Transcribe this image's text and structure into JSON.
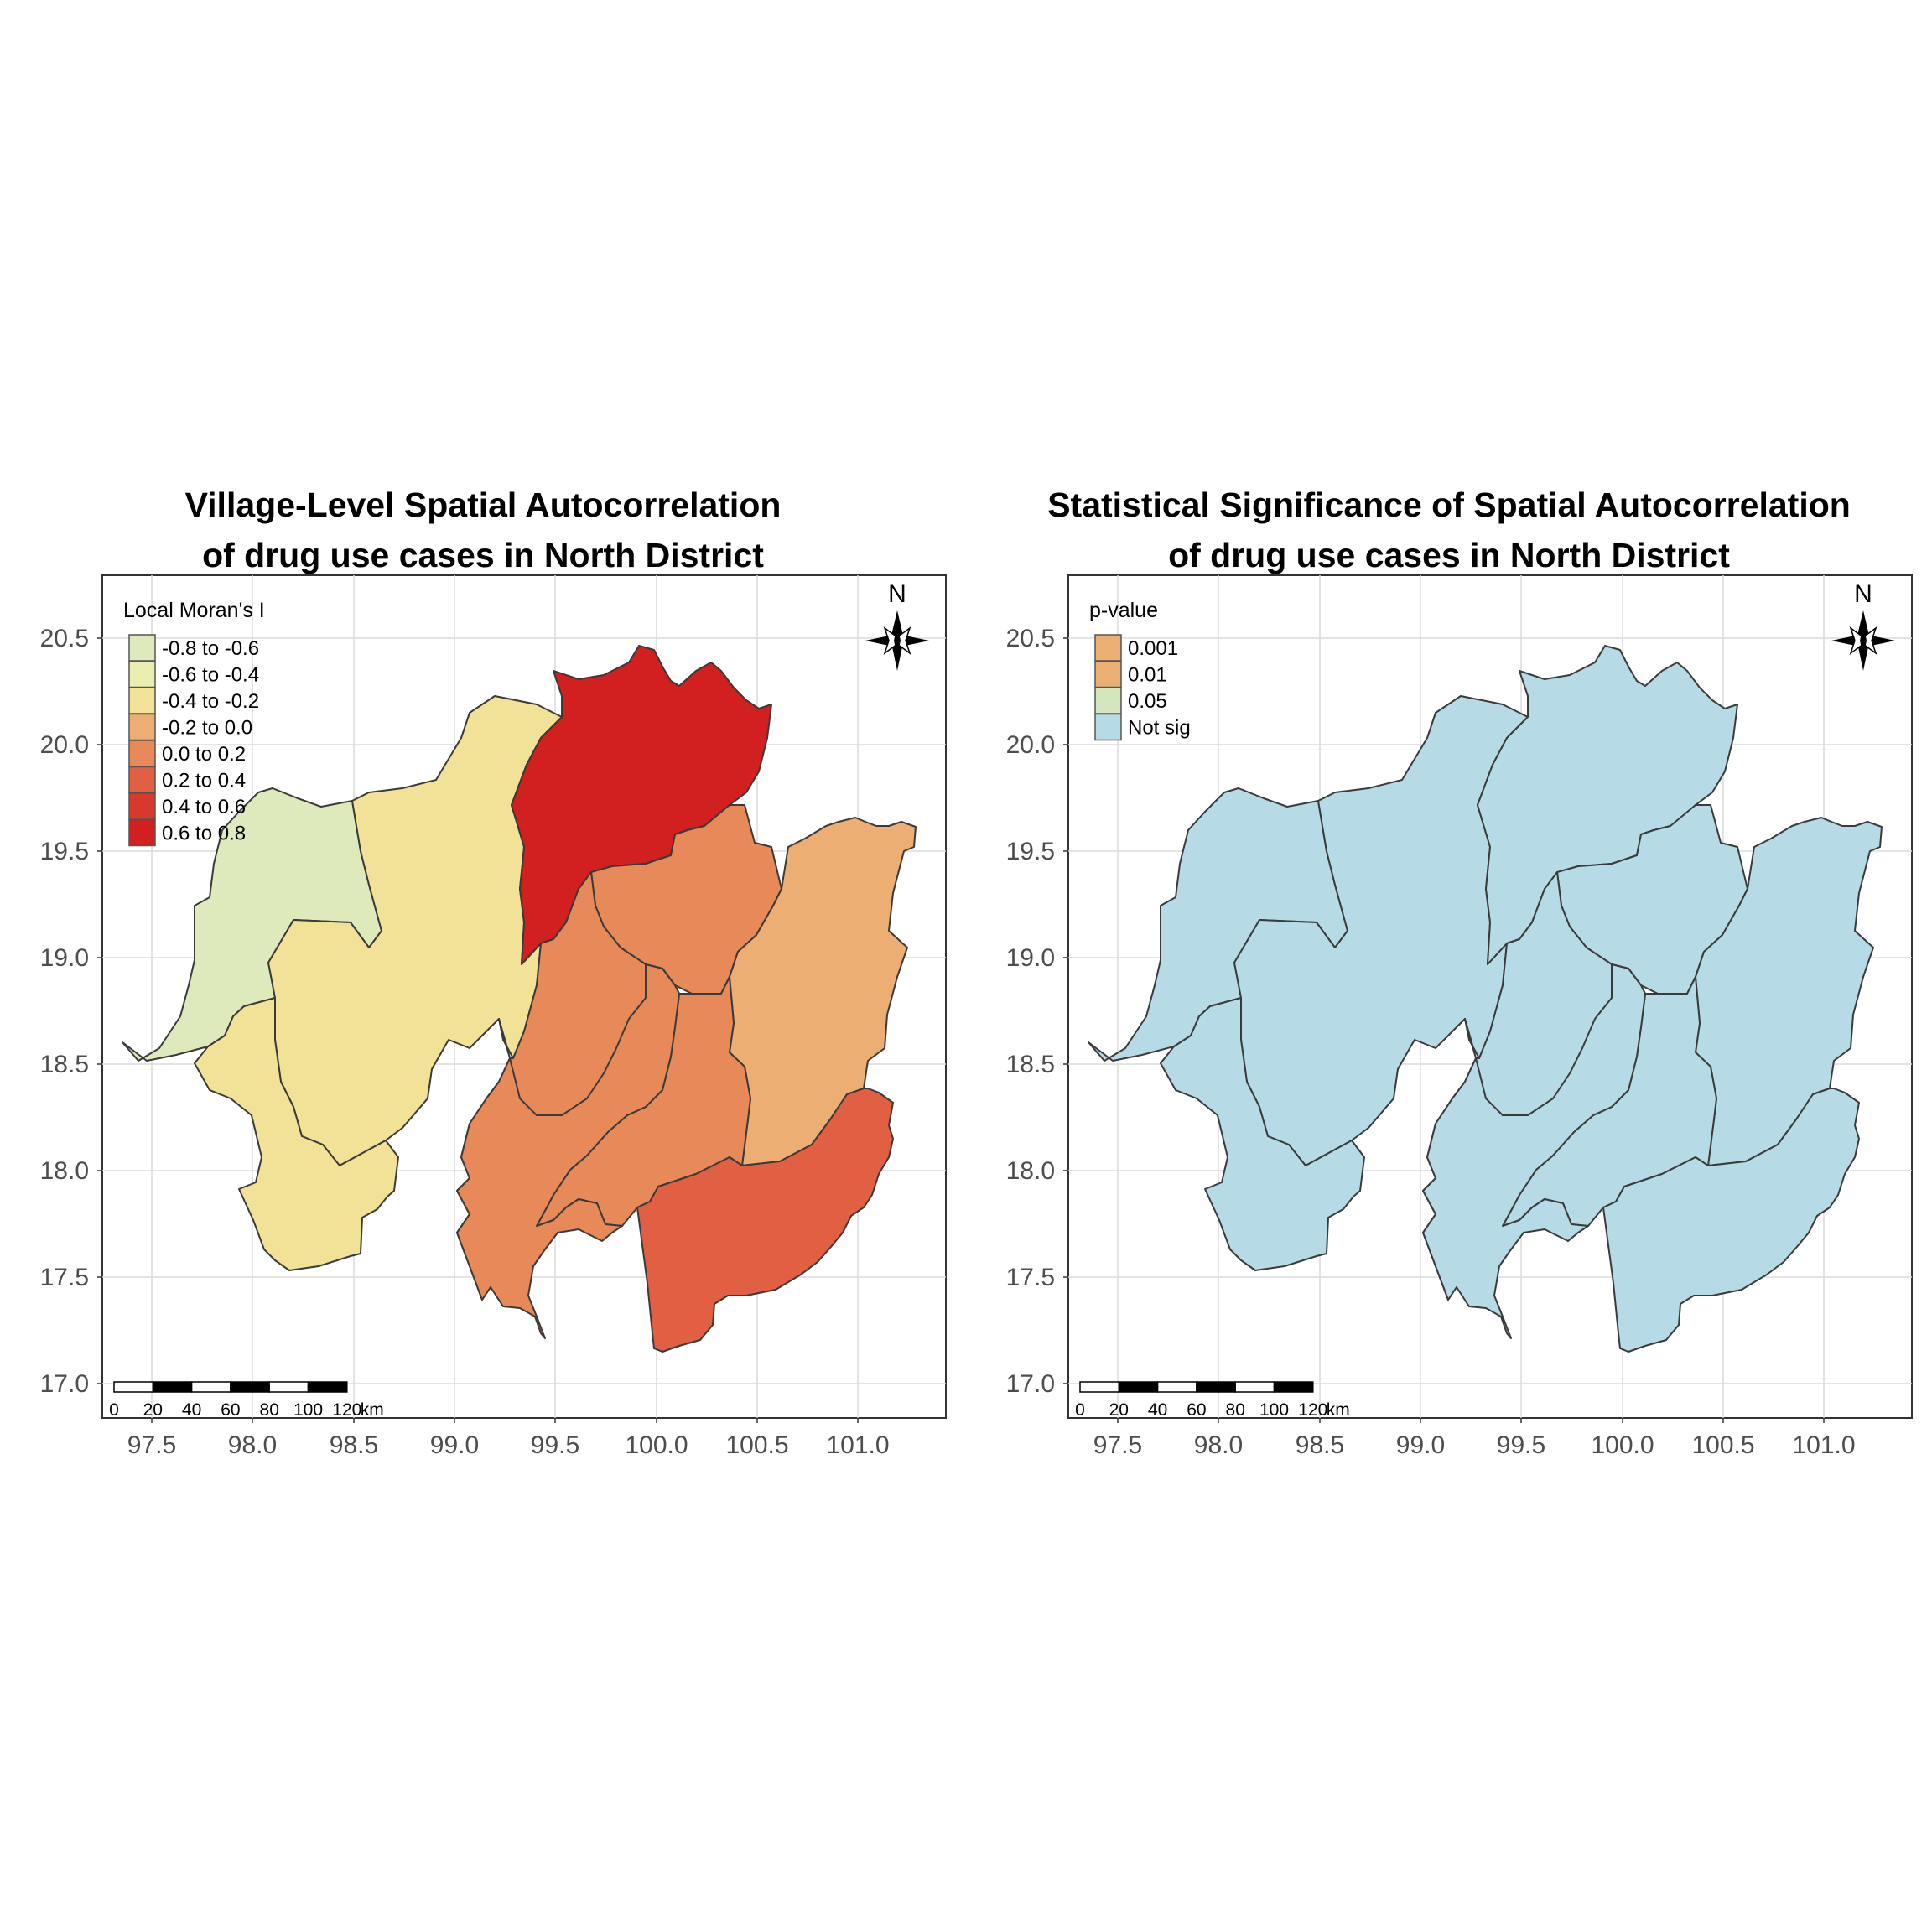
{
  "panels": [
    {
      "title_line1": "Village-Level Spatial Autocorrelation",
      "title_line2": "of drug use cases in North District",
      "legend_title": "Local Moran's I",
      "legend": [
        {
          "label": "-0.8 to -0.6",
          "color": "#deeabc"
        },
        {
          "label": "-0.6 to -0.4",
          "color": "#ecedb0"
        },
        {
          "label": "-0.4 to -0.2",
          "color": "#f1e297"
        },
        {
          "label": "-0.2 to 0.0",
          "color": "#ecae72"
        },
        {
          "label": "0.0 to 0.2",
          "color": "#e8895a"
        },
        {
          "label": "0.2 to 0.4",
          "color": "#e15f42"
        },
        {
          "label": "0.4 to 0.6",
          "color": "#d8392c"
        },
        {
          "label": "0.6 to 0.8",
          "color": "#d21f20"
        }
      ],
      "region_fills": {
        "w_region": "#deeabc",
        "nw_mid": "#f1e297",
        "sw_mid": "#f1e297",
        "north_top": "#d21f20",
        "ne_mid": "#e8895a",
        "east": "#ecae72",
        "center": "#e8895a",
        "center_south": "#e8895a",
        "sc": "#e8895a",
        "se": "#e15f42"
      }
    },
    {
      "title_line1": "Statistical Significance of Spatial Autocorrelation",
      "title_line2": "of drug use cases in North District",
      "legend_title": "p-value",
      "legend": [
        {
          "label": "0.001",
          "color": "#ebaf72"
        },
        {
          "label": "0.01",
          "color": "#ebaf72"
        },
        {
          "label": "0.05",
          "color": "#d3e6bd"
        },
        {
          "label": "Not sig",
          "color": "#b6dae6"
        }
      ],
      "region_fills": {
        "w_region": "#b6dae6",
        "nw_mid": "#b6dae6",
        "sw_mid": "#b6dae6",
        "north_top": "#b6dae6",
        "ne_mid": "#b6dae6",
        "east": "#b6dae6",
        "center": "#b6dae6",
        "center_south": "#b6dae6",
        "sc": "#b6dae6",
        "se": "#b6dae6"
      }
    }
  ],
  "axes": {
    "x_ticks": [
      "97.5",
      "98.0",
      "98.5",
      "99.0",
      "99.5",
      "100.0",
      "100.5",
      "101.0"
    ],
    "y_ticks": [
      "20.5",
      "20.0",
      "19.5",
      "19.0",
      "18.5",
      "18.0",
      "17.5",
      "17.0"
    ]
  },
  "scale_bar": {
    "labels": [
      "0",
      "20",
      "40",
      "60",
      "80",
      "100",
      "120"
    ],
    "unit": "km"
  },
  "north_arrow": {
    "label": "N"
  },
  "colors": {
    "border": "#3a3a3a",
    "grid": "#dcdcdc",
    "frame": "#333333"
  }
}
